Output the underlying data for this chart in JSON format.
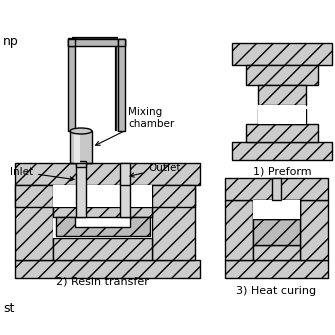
{
  "bg_color": "#ffffff",
  "labels": {
    "pump": "np",
    "mixing_chamber": "Mixing\nchamber",
    "inlet": "Inlet",
    "outlet": "Outlet",
    "step1": "1) Preform",
    "step2": "2) Resin transfer",
    "step3": "3) Heat curing",
    "bottom_left": "st"
  },
  "figsize": [
    3.35,
    3.35
  ],
  "dpi": 100
}
